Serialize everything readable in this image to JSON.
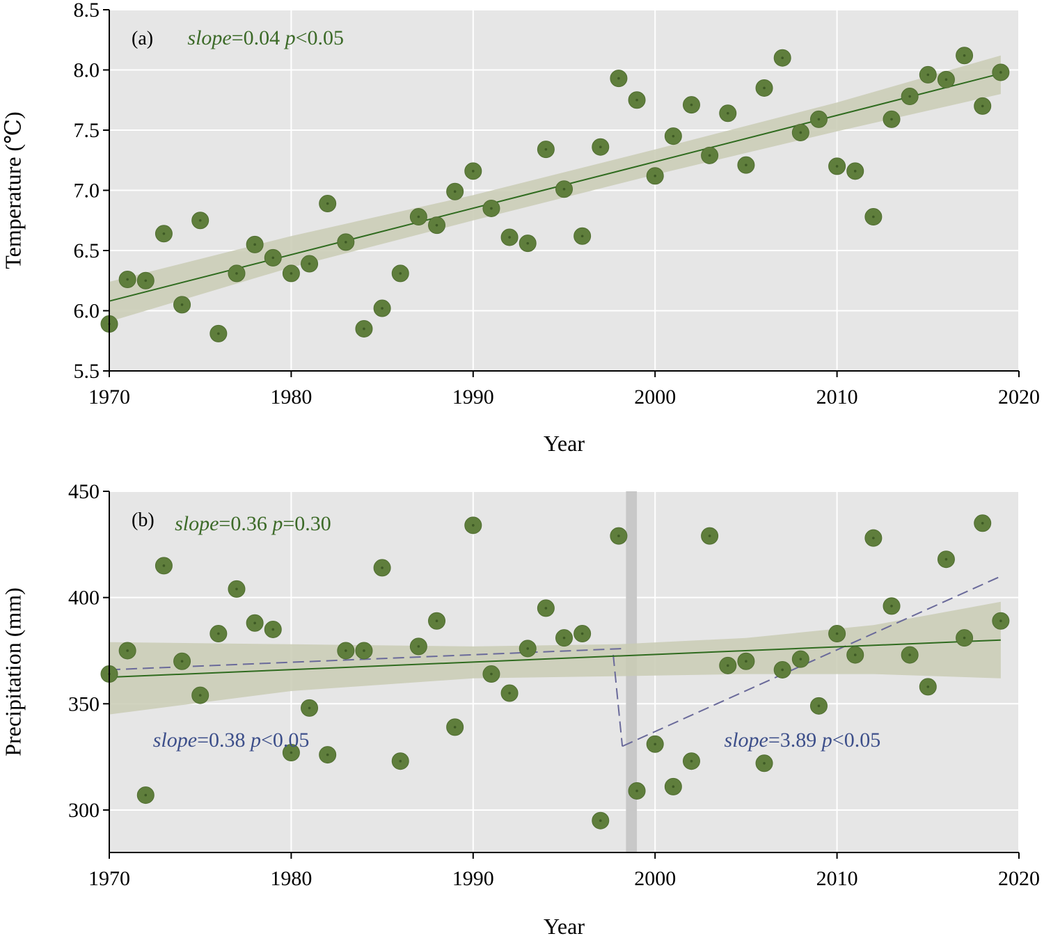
{
  "colors": {
    "panel_bg": "#e6e6e6",
    "grid": "#ffffff",
    "point": "#5f7e3c",
    "point_dot": "#3e5a25",
    "trend_line": "#2f6b1f",
    "ci_band": "#c9cbb4",
    "segment_line": "#6a6a9a",
    "annot_green": "#3c6a28",
    "annot_blue": "#3d4f8a",
    "break_band": "#c8c8c8"
  },
  "chart_data": [
    {
      "type": "scatter",
      "panel_label": "(a)",
      "xlabel": "Year",
      "ylabel": "Temperature (℃)",
      "xlim": [
        1970,
        2020
      ],
      "ylim": [
        5.5,
        8.5
      ],
      "xticks": [
        1970,
        1980,
        1990,
        2000,
        2010,
        2020
      ],
      "yticks": [
        5.5,
        6.0,
        6.5,
        7.0,
        7.5,
        8.0,
        8.5
      ],
      "ytick_labels": [
        "5.5",
        "6.0",
        "6.5",
        "7.0",
        "7.5",
        "8.0",
        "8.5"
      ],
      "grid": true,
      "x": [
        1970,
        1971,
        1972,
        1973,
        1974,
        1975,
        1976,
        1977,
        1978,
        1979,
        1980,
        1981,
        1982,
        1983,
        1984,
        1985,
        1986,
        1987,
        1988,
        1989,
        1990,
        1991,
        1992,
        1993,
        1994,
        1995,
        1996,
        1997,
        1998,
        1999,
        2000,
        2001,
        2002,
        2003,
        2004,
        2005,
        2006,
        2007,
        2008,
        2009,
        2010,
        2011,
        2012,
        2013,
        2014,
        2015,
        2016,
        2017,
        2018,
        2019
      ],
      "y": [
        5.89,
        6.26,
        6.25,
        6.64,
        6.05,
        6.75,
        5.81,
        6.31,
        6.55,
        6.44,
        6.31,
        6.39,
        6.89,
        6.57,
        5.85,
        6.02,
        6.31,
        6.78,
        6.71,
        6.99,
        7.16,
        6.85,
        6.61,
        6.56,
        7.34,
        7.01,
        6.62,
        7.36,
        7.93,
        7.75,
        7.12,
        7.45,
        7.71,
        7.29,
        7.64,
        7.21,
        7.85,
        8.1,
        7.48,
        7.59,
        7.2,
        7.16,
        6.78,
        7.59,
        7.78,
        7.96,
        7.92,
        8.12,
        7.7,
        7.98
      ],
      "trend": {
        "x": [
          1970,
          2019
        ],
        "y": [
          6.08,
          7.97
        ]
      },
      "ci": {
        "x": [
          1970,
          1980,
          1990,
          2000,
          2010,
          2019
        ],
        "lower": [
          5.91,
          6.36,
          6.75,
          7.13,
          7.49,
          7.8
        ],
        "upper": [
          6.24,
          6.62,
          6.96,
          7.34,
          7.73,
          8.12
        ]
      },
      "annotations": [
        {
          "italic": "slope",
          "text1": "=0.04 ",
          "italic2": "p",
          "text2": "<0.05",
          "color": "green",
          "x": 1974.3,
          "y": 8.27
        }
      ]
    },
    {
      "type": "scatter",
      "panel_label": "(b)",
      "xlabel": "Year",
      "ylabel": "Precipitation (mm)",
      "xlim": [
        1970,
        2020
      ],
      "ylim": [
        280,
        450
      ],
      "xticks": [
        1970,
        1980,
        1990,
        2000,
        2010,
        2020
      ],
      "yticks": [
        300,
        350,
        400,
        450
      ],
      "ytick_labels": [
        "300",
        "350",
        "400",
        "450"
      ],
      "grid": true,
      "x": [
        1970,
        1971,
        1972,
        1973,
        1974,
        1975,
        1976,
        1977,
        1978,
        1979,
        1980,
        1981,
        1982,
        1983,
        1984,
        1985,
        1986,
        1987,
        1988,
        1989,
        1990,
        1991,
        1992,
        1993,
        1994,
        1995,
        1996,
        1997,
        1998,
        1999,
        2000,
        2001,
        2002,
        2003,
        2004,
        2005,
        2006,
        2007,
        2008,
        2009,
        2010,
        2011,
        2012,
        2013,
        2014,
        2015,
        2016,
        2017,
        2018,
        2019
      ],
      "y": [
        364,
        375,
        307,
        415,
        370,
        354,
        383,
        404,
        388,
        385,
        327,
        348,
        326,
        375,
        375,
        414,
        323,
        377,
        389,
        339,
        434,
        364,
        355,
        376,
        395,
        381,
        383,
        295,
        429,
        309,
        331,
        311,
        323,
        429,
        368,
        370,
        322,
        366,
        371,
        349,
        383,
        373,
        428,
        396,
        373,
        358,
        418,
        381,
        435,
        389
      ],
      "trend": {
        "x": [
          1970,
          2019
        ],
        "y": [
          362.5,
          380
        ]
      },
      "ci": {
        "x": [
          1970,
          1980,
          1990,
          1998,
          2005,
          2012,
          2019
        ],
        "lower": [
          345,
          356,
          362,
          363,
          364,
          364,
          362
        ],
        "upper": [
          379,
          378,
          377,
          378,
          381,
          387,
          398
        ]
      },
      "segments": [
        {
          "x": [
            1970,
            1998.3
          ],
          "y": [
            366,
            376
          ]
        },
        {
          "x": [
            1997.7,
            1998.2
          ],
          "y": [
            373,
            330
          ]
        },
        {
          "x": [
            1998.2,
            2019
          ],
          "y": [
            330,
            410
          ]
        }
      ],
      "break_band": [
        1998.4,
        1999.0
      ],
      "annotations": [
        {
          "italic": "slope",
          "text1": "=0.36 ",
          "italic2": "p",
          "text2": "=0.30",
          "color": "green",
          "x": 1973.6,
          "y": 435
        },
        {
          "italic": "slope",
          "text1": "=0.38 ",
          "italic2": "p",
          "text2": "<0.05",
          "color": "blue",
          "x": 1972.4,
          "y": 333
        },
        {
          "italic": "slope",
          "text1": "=3.89 ",
          "italic2": "p",
          "text2": "<0.05",
          "color": "blue",
          "x": 2003.8,
          "y": 333
        }
      ]
    }
  ]
}
